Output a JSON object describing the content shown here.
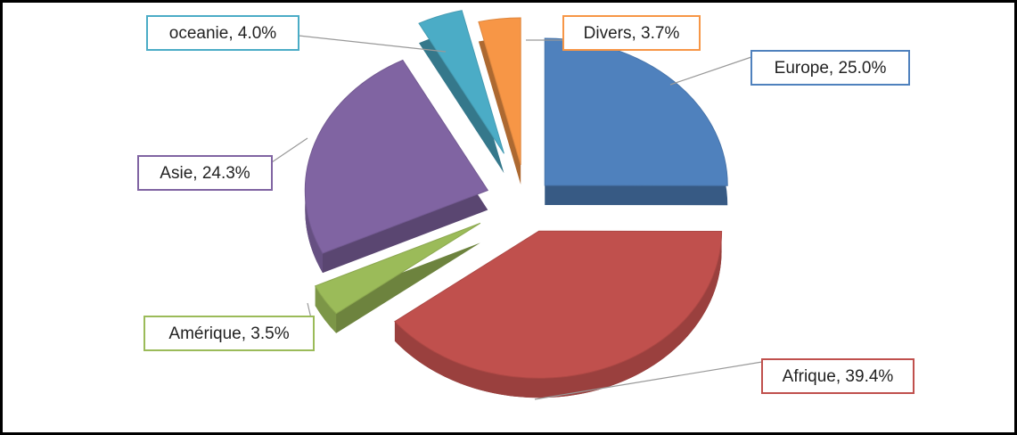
{
  "chart_data": {
    "type": "pie",
    "values": [
      25.0,
      39.4,
      3.5,
      24.3,
      4.0,
      3.7
    ],
    "value_labels": [
      "Europe, 25.0%",
      "Afrique, 39.4%",
      "Amérique, 3.5%",
      "Asie, 24.3%",
      "oceanie, 4.0%",
      "Divers, 3.7%"
    ],
    "colors": [
      "#4f81bd",
      "#c0504d",
      "#9bbb59",
      "#8064a2",
      "#4bacc6",
      "#f79646"
    ]
  }
}
